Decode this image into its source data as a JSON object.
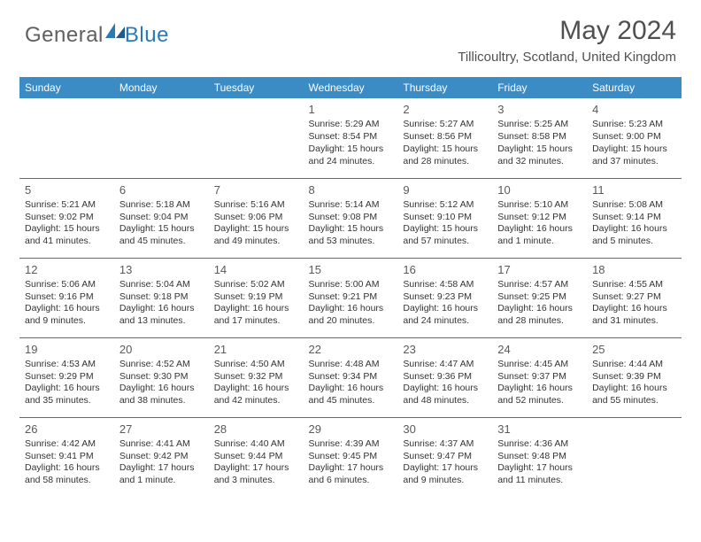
{
  "logo": {
    "part1": "General",
    "part2": "Blue"
  },
  "title": "May 2024",
  "location": "Tillicoultry, Scotland, United Kingdom",
  "day_headers": [
    "Sunday",
    "Monday",
    "Tuesday",
    "Wednesday",
    "Thursday",
    "Friday",
    "Saturday"
  ],
  "colors": {
    "header_bg": "#3b8bc4",
    "header_text": "#ffffff",
    "border": "#2a7ab8",
    "title_text": "#505050",
    "body_text": "#333333",
    "logo_gray": "#606060",
    "logo_blue": "#2a7ab8"
  },
  "layout": {
    "columns": 7,
    "lead_blanks": 3
  },
  "days": [
    {
      "n": "1",
      "sunrise": "5:29 AM",
      "sunset": "8:54 PM",
      "daylight": "15 hours and 24 minutes."
    },
    {
      "n": "2",
      "sunrise": "5:27 AM",
      "sunset": "8:56 PM",
      "daylight": "15 hours and 28 minutes."
    },
    {
      "n": "3",
      "sunrise": "5:25 AM",
      "sunset": "8:58 PM",
      "daylight": "15 hours and 32 minutes."
    },
    {
      "n": "4",
      "sunrise": "5:23 AM",
      "sunset": "9:00 PM",
      "daylight": "15 hours and 37 minutes."
    },
    {
      "n": "5",
      "sunrise": "5:21 AM",
      "sunset": "9:02 PM",
      "daylight": "15 hours and 41 minutes."
    },
    {
      "n": "6",
      "sunrise": "5:18 AM",
      "sunset": "9:04 PM",
      "daylight": "15 hours and 45 minutes."
    },
    {
      "n": "7",
      "sunrise": "5:16 AM",
      "sunset": "9:06 PM",
      "daylight": "15 hours and 49 minutes."
    },
    {
      "n": "8",
      "sunrise": "5:14 AM",
      "sunset": "9:08 PM",
      "daylight": "15 hours and 53 minutes."
    },
    {
      "n": "9",
      "sunrise": "5:12 AM",
      "sunset": "9:10 PM",
      "daylight": "15 hours and 57 minutes."
    },
    {
      "n": "10",
      "sunrise": "5:10 AM",
      "sunset": "9:12 PM",
      "daylight": "16 hours and 1 minute."
    },
    {
      "n": "11",
      "sunrise": "5:08 AM",
      "sunset": "9:14 PM",
      "daylight": "16 hours and 5 minutes."
    },
    {
      "n": "12",
      "sunrise": "5:06 AM",
      "sunset": "9:16 PM",
      "daylight": "16 hours and 9 minutes."
    },
    {
      "n": "13",
      "sunrise": "5:04 AM",
      "sunset": "9:18 PM",
      "daylight": "16 hours and 13 minutes."
    },
    {
      "n": "14",
      "sunrise": "5:02 AM",
      "sunset": "9:19 PM",
      "daylight": "16 hours and 17 minutes."
    },
    {
      "n": "15",
      "sunrise": "5:00 AM",
      "sunset": "9:21 PM",
      "daylight": "16 hours and 20 minutes."
    },
    {
      "n": "16",
      "sunrise": "4:58 AM",
      "sunset": "9:23 PM",
      "daylight": "16 hours and 24 minutes."
    },
    {
      "n": "17",
      "sunrise": "4:57 AM",
      "sunset": "9:25 PM",
      "daylight": "16 hours and 28 minutes."
    },
    {
      "n": "18",
      "sunrise": "4:55 AM",
      "sunset": "9:27 PM",
      "daylight": "16 hours and 31 minutes."
    },
    {
      "n": "19",
      "sunrise": "4:53 AM",
      "sunset": "9:29 PM",
      "daylight": "16 hours and 35 minutes."
    },
    {
      "n": "20",
      "sunrise": "4:52 AM",
      "sunset": "9:30 PM",
      "daylight": "16 hours and 38 minutes."
    },
    {
      "n": "21",
      "sunrise": "4:50 AM",
      "sunset": "9:32 PM",
      "daylight": "16 hours and 42 minutes."
    },
    {
      "n": "22",
      "sunrise": "4:48 AM",
      "sunset": "9:34 PM",
      "daylight": "16 hours and 45 minutes."
    },
    {
      "n": "23",
      "sunrise": "4:47 AM",
      "sunset": "9:36 PM",
      "daylight": "16 hours and 48 minutes."
    },
    {
      "n": "24",
      "sunrise": "4:45 AM",
      "sunset": "9:37 PM",
      "daylight": "16 hours and 52 minutes."
    },
    {
      "n": "25",
      "sunrise": "4:44 AM",
      "sunset": "9:39 PM",
      "daylight": "16 hours and 55 minutes."
    },
    {
      "n": "26",
      "sunrise": "4:42 AM",
      "sunset": "9:41 PM",
      "daylight": "16 hours and 58 minutes."
    },
    {
      "n": "27",
      "sunrise": "4:41 AM",
      "sunset": "9:42 PM",
      "daylight": "17 hours and 1 minute."
    },
    {
      "n": "28",
      "sunrise": "4:40 AM",
      "sunset": "9:44 PM",
      "daylight": "17 hours and 3 minutes."
    },
    {
      "n": "29",
      "sunrise": "4:39 AM",
      "sunset": "9:45 PM",
      "daylight": "17 hours and 6 minutes."
    },
    {
      "n": "30",
      "sunrise": "4:37 AM",
      "sunset": "9:47 PM",
      "daylight": "17 hours and 9 minutes."
    },
    {
      "n": "31",
      "sunrise": "4:36 AM",
      "sunset": "9:48 PM",
      "daylight": "17 hours and 11 minutes."
    }
  ],
  "labels": {
    "sunrise": "Sunrise:",
    "sunset": "Sunset:",
    "daylight": "Daylight:"
  }
}
